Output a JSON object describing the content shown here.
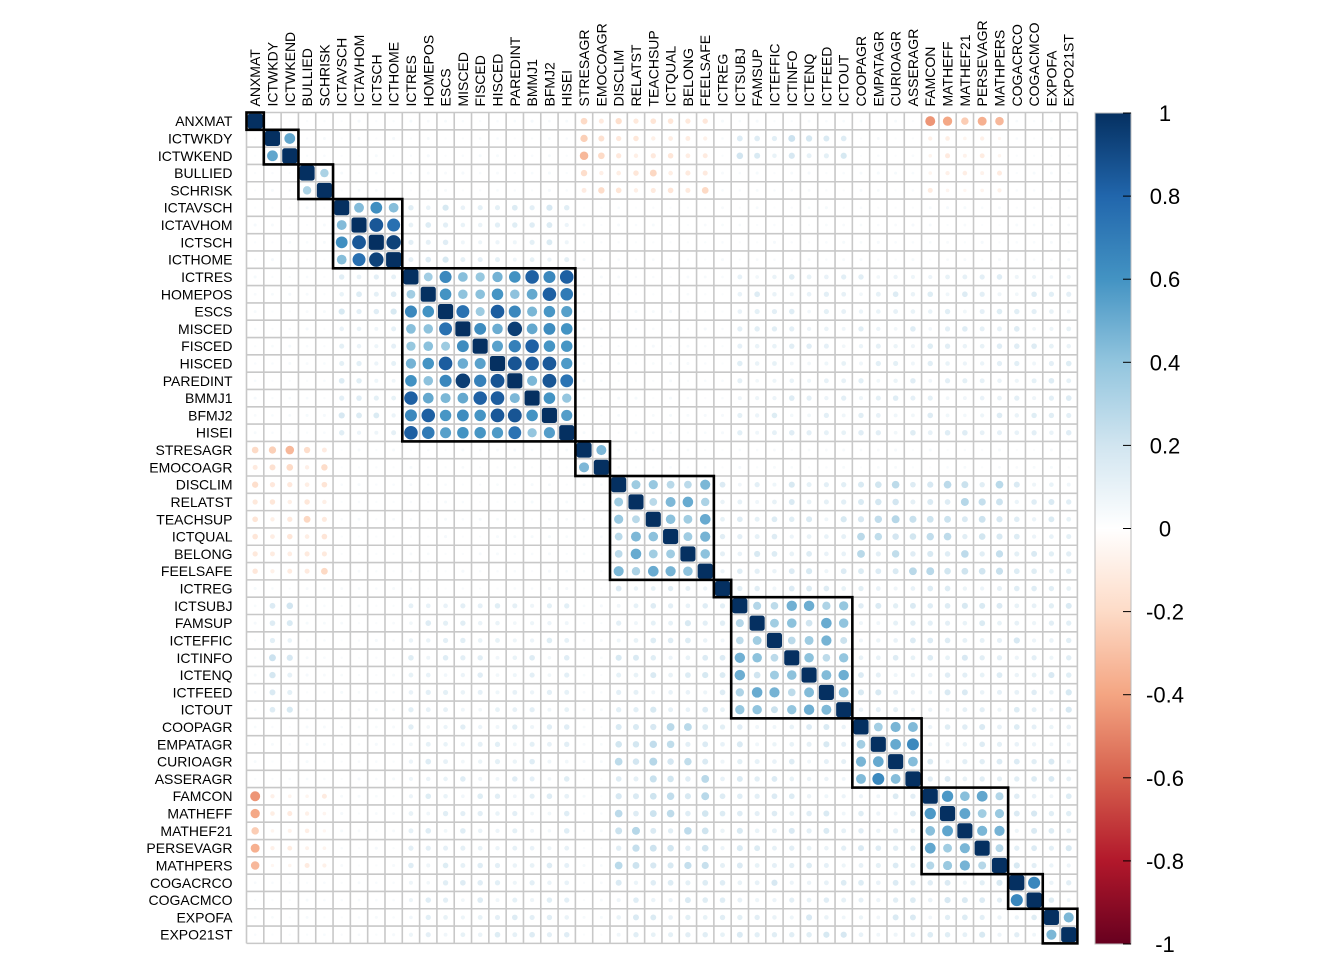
{
  "chart_data": {
    "type": "heatmap",
    "variables": [
      "ANXMAT",
      "ICTWKDY",
      "ICTWKEND",
      "BULLIED",
      "SCHRISK",
      "ICTAVSCH",
      "ICTAVHOM",
      "ICTSCH",
      "ICTHOME",
      "ICTRES",
      "HOMEPOS",
      "ESCS",
      "MISCED",
      "FISCED",
      "HISCED",
      "PAREDINT",
      "BMMJ1",
      "BFMJ2",
      "HISEI",
      "STRESAGR",
      "EMOCOAGR",
      "DISCLIM",
      "RELATST",
      "TEACHSUP",
      "ICTQUAL",
      "BELONG",
      "FEELSAFE",
      "ICTREG",
      "ICTSUBJ",
      "FAMSUP",
      "ICTEFFIC",
      "ICTINFO",
      "ICTENQ",
      "ICTFEED",
      "ICTOUT",
      "COOPAGR",
      "EMPATAGR",
      "CURIOAGR",
      "ASSERAGR",
      "FAMCON",
      "MATHEFF",
      "MATHEF21",
      "PERSEVAGR",
      "MATHPERS",
      "COGACRCO",
      "COGACMCO",
      "EXPOFA",
      "EXPO21ST"
    ],
    "clusters": [
      [
        0,
        0
      ],
      [
        1,
        2
      ],
      [
        3,
        4
      ],
      [
        5,
        8
      ],
      [
        9,
        18
      ],
      [
        19,
        20
      ],
      [
        21,
        26
      ],
      [
        27,
        27
      ],
      [
        28,
        34
      ],
      [
        35,
        38
      ],
      [
        39,
        43
      ],
      [
        44,
        45
      ],
      [
        46,
        47
      ]
    ],
    "within_cluster": [
      {
        "block": [
          1,
          2
        ],
        "r": 0.85
      },
      {
        "block": [
          3,
          4
        ],
        "r": 0.55
      },
      {
        "block": [
          5,
          8
        ],
        "r": 0.7
      },
      {
        "block": [
          9,
          18
        ],
        "r": 0.6
      },
      {
        "block": [
          12,
          15
        ],
        "r": 0.85
      },
      {
        "block": [
          19,
          20
        ],
        "r": 0.65
      },
      {
        "block": [
          21,
          26
        ],
        "r": 0.35
      },
      {
        "block": [
          28,
          34
        ],
        "r": 0.35
      },
      {
        "block": [
          35,
          38
        ],
        "r": 0.45
      },
      {
        "block": [
          39,
          43
        ],
        "r": 0.4
      },
      {
        "block": [
          44,
          45
        ],
        "r": 0.65
      },
      {
        "block": [
          46,
          47
        ],
        "r": 0.65
      }
    ],
    "between_cluster": [
      {
        "rows": [
          21,
          47
        ],
        "cols": [
          21,
          47
        ],
        "r": 0.12
      },
      {
        "rows": [
          9,
          18
        ],
        "cols": [
          28,
          47
        ],
        "r": 0.1
      },
      {
        "rows": [
          9,
          18
        ],
        "cols": [
          5,
          8
        ],
        "r": 0.12
      },
      {
        "rows": [
          19,
          20
        ],
        "cols": [
          0,
          4
        ],
        "r": -0.25
      },
      {
        "rows": [
          21,
          26
        ],
        "cols": [
          0,
          4
        ],
        "r": -0.1
      },
      {
        "rows": [
          39,
          43
        ],
        "cols": [
          0,
          0
        ],
        "r": -0.3
      },
      {
        "rows": [
          39,
          43
        ],
        "cols": [
          1,
          4
        ],
        "r": -0.08
      },
      {
        "rows": [
          0,
          0
        ],
        "cols": [
          19,
          26
        ],
        "r": -0.15
      },
      {
        "rows": [
          0,
          0
        ],
        "cols": [
          39,
          43
        ],
        "r": -0.35
      },
      {
        "rows": [
          3,
          4
        ],
        "cols": [
          19,
          26
        ],
        "r": -0.15
      },
      {
        "rows": [
          1,
          2
        ],
        "cols": [
          28,
          34
        ],
        "r": 0.15
      },
      {
        "rows": [
          21,
          26
        ],
        "cols": [
          35,
          43
        ],
        "r": 0.2
      }
    ],
    "colorbar": {
      "ticks": [
        "1",
        "0.8",
        "0.6",
        "0.4",
        "0.2",
        "0",
        "-0.2",
        "-0.4",
        "-0.6",
        "-0.8",
        "-1"
      ],
      "range": [
        -1,
        1
      ],
      "colors": [
        "#67001F",
        "#B2182B",
        "#D6604D",
        "#F4A582",
        "#FDDBC7",
        "#FFFFFF",
        "#D1E5F0",
        "#92C5DE",
        "#4393C3",
        "#2166AC",
        "#053061"
      ]
    },
    "grid": true,
    "cluster_outline_color": "#000000"
  }
}
